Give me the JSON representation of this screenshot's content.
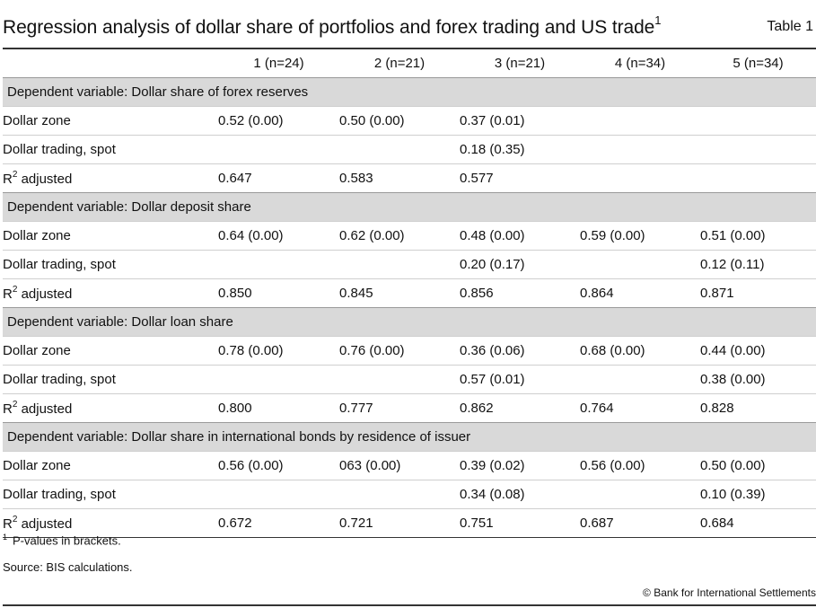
{
  "header": {
    "title": "Regression analysis of dollar share of portfolios and forex trading and US trade",
    "title_footnote": "1",
    "table_label": "Table 1"
  },
  "columns": [
    "1 (n=24)",
    "2 (n=21)",
    "3 (n=21)",
    "4 (n=34)",
    "5 (n=34)"
  ],
  "sections": [
    {
      "heading": "Dependent variable: Dollar share of forex reserves",
      "rows": [
        {
          "label": "Dollar zone",
          "values": [
            "0.52 (0.00)",
            "0.50 (0.00)",
            "0.37 (0.01)",
            "",
            ""
          ]
        },
        {
          "label": "Dollar trading, spot",
          "values": [
            "",
            "",
            "0.18 (0.35)",
            "",
            ""
          ]
        },
        {
          "label": "R",
          "label_sup": "2",
          "label_rest": " adjusted",
          "values": [
            "0.647",
            "0.583",
            "0.577",
            "",
            ""
          ]
        }
      ]
    },
    {
      "heading": "Dependent variable: Dollar deposit share",
      "rows": [
        {
          "label": "Dollar zone",
          "values": [
            "0.64 (0.00)",
            "0.62 (0.00)",
            "0.48 (0.00)",
            "0.59 (0.00)",
            "0.51 (0.00)"
          ]
        },
        {
          "label": "Dollar trading, spot",
          "values": [
            "",
            "",
            "0.20 (0.17)",
            "",
            "0.12 (0.11)"
          ]
        },
        {
          "label": "R",
          "label_sup": "2",
          "label_rest": " adjusted",
          "values": [
            "0.850",
            "0.845",
            "0.856",
            "0.864",
            "0.871"
          ]
        }
      ]
    },
    {
      "heading": "Dependent variable: Dollar loan share",
      "rows": [
        {
          "label": "Dollar zone",
          "values": [
            "0.78 (0.00)",
            "0.76 (0.00)",
            "0.36 (0.06)",
            "0.68 (0.00)",
            "0.44 (0.00)"
          ]
        },
        {
          "label": "Dollar trading, spot",
          "values": [
            "",
            "",
            "0.57 (0.01)",
            "",
            "0.38 (0.00)"
          ]
        },
        {
          "label": "R",
          "label_sup": "2",
          "label_rest": " adjusted",
          "values": [
            "0.800",
            "0.777",
            "0.862",
            "0.764",
            "0.828"
          ]
        }
      ]
    },
    {
      "heading": "Dependent variable: Dollar share in international bonds by residence of issuer",
      "rows": [
        {
          "label": "Dollar zone",
          "values": [
            "0.56 (0.00)",
            "063 (0.00)",
            "0.39 (0.02)",
            "0.56 (0.00)",
            "0.50 (0.00)"
          ]
        },
        {
          "label": "Dollar trading, spot",
          "values": [
            "",
            "",
            "0.34 (0.08)",
            "",
            "0.10 (0.39)"
          ]
        },
        {
          "label": "R",
          "label_sup": "2",
          "label_rest": " adjusted",
          "values": [
            "0.672",
            "0.721",
            "0.751",
            "0.687",
            "0.684"
          ]
        }
      ]
    }
  ],
  "footnotes": {
    "note_marker": "1",
    "note_text": "P-values in brackets.",
    "source": "Source: BIS calculations.",
    "copyright": "© Bank for International Settlements"
  }
}
